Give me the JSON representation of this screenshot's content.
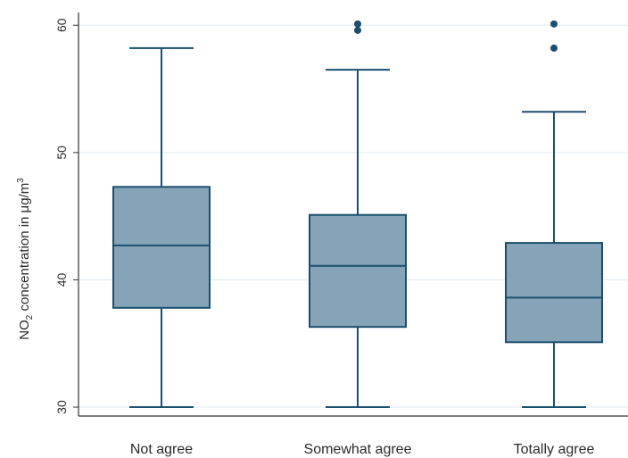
{
  "chart_data": {
    "type": "box",
    "title": "",
    "xlabel": "",
    "ylabel": {
      "prefix": "NO",
      "subscript": "2",
      "middle": " concentration in μg/m",
      "superscript": "3"
    },
    "ylim": [
      29.3,
      61
    ],
    "yticks": [
      30,
      40,
      50,
      60
    ],
    "ytick_labels": [
      "30",
      "40",
      "50",
      "60"
    ],
    "grid": true,
    "categories": [
      "Not agree",
      "Somewhat agree",
      "Totally agree"
    ],
    "boxes": [
      {
        "name": "Not agree",
        "whisker_low": 30,
        "q1": 37.8,
        "median": 42.7,
        "q3": 47.3,
        "whisker_high": 58.2,
        "outliers": []
      },
      {
        "name": "Somewhat agree",
        "whisker_low": 30,
        "q1": 36.3,
        "median": 41.1,
        "q3": 45.1,
        "whisker_high": 56.5,
        "outliers": [
          59.6,
          60.1
        ]
      },
      {
        "name": "Totally agree",
        "whisker_low": 30,
        "q1": 35.1,
        "median": 38.6,
        "q3": 42.9,
        "whisker_high": 53.2,
        "outliers": [
          58.2,
          60.1
        ]
      }
    ],
    "colors": {
      "box_fill": "#86a4b8",
      "stroke": "#1a4f6e",
      "grid": "#dfe9ee",
      "axis": "#333333"
    }
  }
}
